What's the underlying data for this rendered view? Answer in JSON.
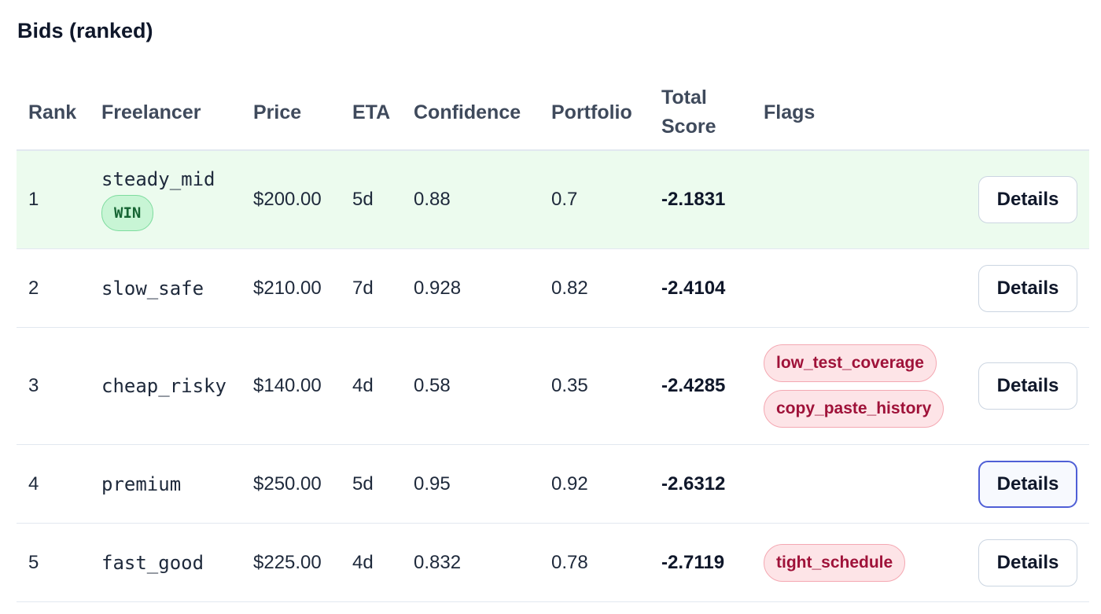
{
  "title": "Bids (ranked)",
  "columns": {
    "rank": "Rank",
    "freelancer": "Freelancer",
    "price": "Price",
    "eta": "ETA",
    "confidence": "Confidence",
    "portfolio": "Portfolio",
    "total_score_line1": "Total",
    "total_score_line2": "Score",
    "flags": "Flags"
  },
  "win_badge": "WIN",
  "details_label": "Details",
  "colors": {
    "win_row_bg": "#ecfbee",
    "win_badge_bg": "#c8f5d5",
    "flag_bg": "#fde4e7",
    "flag_text": "#9f1239",
    "focus_border": "#4f5fd6"
  },
  "rows": [
    {
      "rank": "1",
      "freelancer": "steady_mid",
      "winner": true,
      "price": "$200.00",
      "eta": "5d",
      "confidence": "0.88",
      "portfolio": "0.7",
      "score": "-2.1831",
      "flags": [],
      "focused": false
    },
    {
      "rank": "2",
      "freelancer": "slow_safe",
      "winner": false,
      "price": "$210.00",
      "eta": "7d",
      "confidence": "0.928",
      "portfolio": "0.82",
      "score": "-2.4104",
      "flags": [],
      "focused": false
    },
    {
      "rank": "3",
      "freelancer": "cheap_risky",
      "winner": false,
      "price": "$140.00",
      "eta": "4d",
      "confidence": "0.58",
      "portfolio": "0.35",
      "score": "-2.4285",
      "flags": [
        "low_test_coverage",
        "copy_paste_history"
      ],
      "focused": false
    },
    {
      "rank": "4",
      "freelancer": "premium",
      "winner": false,
      "price": "$250.00",
      "eta": "5d",
      "confidence": "0.95",
      "portfolio": "0.92",
      "score": "-2.6312",
      "flags": [],
      "focused": true
    },
    {
      "rank": "5",
      "freelancer": "fast_good",
      "winner": false,
      "price": "$225.00",
      "eta": "4d",
      "confidence": "0.832",
      "portfolio": "0.78",
      "score": "-2.7119",
      "flags": [
        "tight_schedule"
      ],
      "focused": false
    }
  ]
}
